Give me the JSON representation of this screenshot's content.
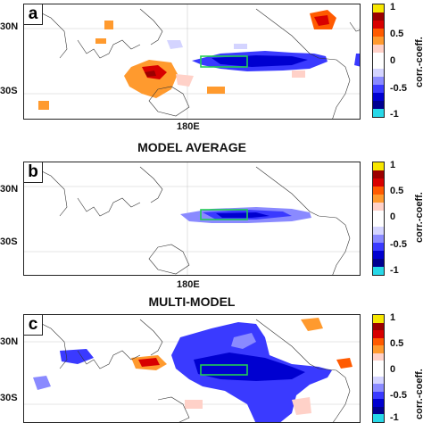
{
  "panels": [
    {
      "id": "a",
      "title": "",
      "x_tick": "180E",
      "y_ticks": [
        "30N",
        "30S"
      ],
      "map": "Pacific-centered world map of correlation coefficients"
    },
    {
      "id": "b",
      "title": "MODEL AVERAGE",
      "x_tick": "180E",
      "y_ticks": [
        "30N",
        "30S"
      ],
      "map": "Pacific-centered world map of correlation coefficients"
    },
    {
      "id": "c",
      "title": "MULTI-MODEL",
      "x_tick": "",
      "y_ticks": [
        "30N",
        "30S"
      ],
      "map": "Pacific-centered world map of correlation coefficients"
    }
  ],
  "colorbar": {
    "title": "corr.-coeff.",
    "tick_labels": [
      "1",
      "0.5",
      "0",
      "-0.5",
      "-1"
    ],
    "colors": [
      "#f7e600",
      "#9b0000",
      "#d80000",
      "#ff5a00",
      "#ff9a2e",
      "#ffd1c8",
      "#ffffff",
      "#ffffff",
      "#d4d4ff",
      "#8a8aff",
      "#3a3aff",
      "#0000d0",
      "#000090",
      "#28d8e8"
    ]
  },
  "chart_data": {
    "type": "heatmap",
    "title": "",
    "xlabel": "",
    "ylabel": "",
    "colorbar_range": [
      -1,
      1
    ],
    "colorbar_label": "corr.-coeff.",
    "panels": [
      "a",
      "b",
      "c"
    ],
    "highlight_box": "green rectangle outlining the central equatorial Pacific in every panel"
  }
}
